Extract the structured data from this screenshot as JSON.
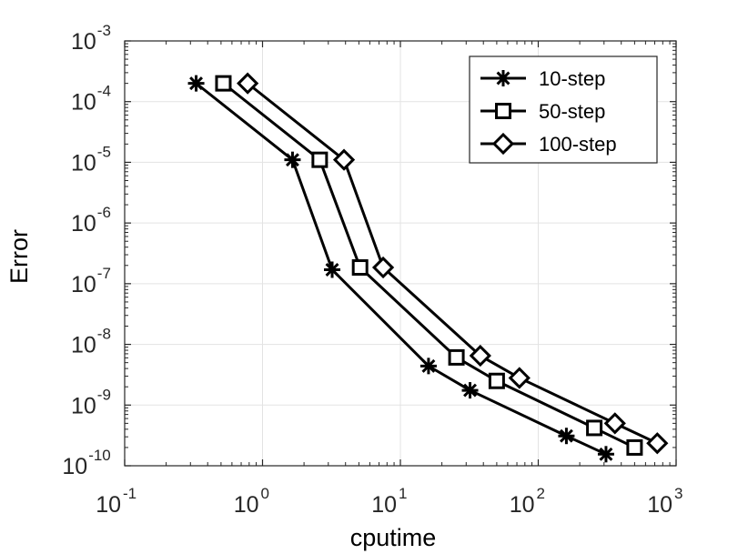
{
  "chart_data": {
    "type": "line",
    "xscale": "log",
    "yscale": "log",
    "xlabel": "cputime",
    "ylabel": "Error",
    "xlim": [
      0.1,
      1000
    ],
    "ylim": [
      1e-10,
      0.001
    ],
    "grid": true,
    "legend_position": "top-right",
    "x_ticks": [
      {
        "value": 0.1,
        "base": "10",
        "exp": "-1"
      },
      {
        "value": 1,
        "base": "10",
        "exp": "0"
      },
      {
        "value": 10,
        "base": "10",
        "exp": "1"
      },
      {
        "value": 100,
        "base": "10",
        "exp": "2"
      },
      {
        "value": 1000,
        "base": "10",
        "exp": "3"
      }
    ],
    "y_ticks": [
      {
        "value": 0.001,
        "base": "10",
        "exp": "-3"
      },
      {
        "value": 0.0001,
        "base": "10",
        "exp": "-4"
      },
      {
        "value": 1e-05,
        "base": "10",
        "exp": "-5"
      },
      {
        "value": 1e-06,
        "base": "10",
        "exp": "-6"
      },
      {
        "value": 1e-07,
        "base": "10",
        "exp": "-7"
      },
      {
        "value": 1e-08,
        "base": "10",
        "exp": "-8"
      },
      {
        "value": 1e-09,
        "base": "10",
        "exp": "-9"
      },
      {
        "value": 1e-10,
        "base": "10",
        "exp": "-10"
      }
    ],
    "series": [
      {
        "name": "10-step",
        "marker": "asterisk",
        "color": "#000000",
        "x": [
          0.33,
          1.65,
          3.2,
          16,
          32,
          160,
          310
        ],
        "y": [
          0.0002,
          1.1e-05,
          1.7e-07,
          4.4e-09,
          1.75e-09,
          3.1e-10,
          1.55e-10
        ]
      },
      {
        "name": "50-step",
        "marker": "square",
        "color": "#000000",
        "x": [
          0.52,
          2.6,
          5.1,
          25.5,
          50,
          255,
          500
        ],
        "y": [
          0.0002,
          1.1e-05,
          1.85e-07,
          6.1e-09,
          2.5e-09,
          4.2e-10,
          2e-10
        ]
      },
      {
        "name": "100-step",
        "marker": "diamond",
        "color": "#000000",
        "x": [
          0.78,
          3.9,
          7.5,
          38,
          73,
          360,
          730
        ],
        "y": [
          0.0002,
          1.1e-05,
          1.85e-07,
          6.5e-09,
          2.8e-09,
          5e-10,
          2.35e-10
        ]
      }
    ]
  }
}
